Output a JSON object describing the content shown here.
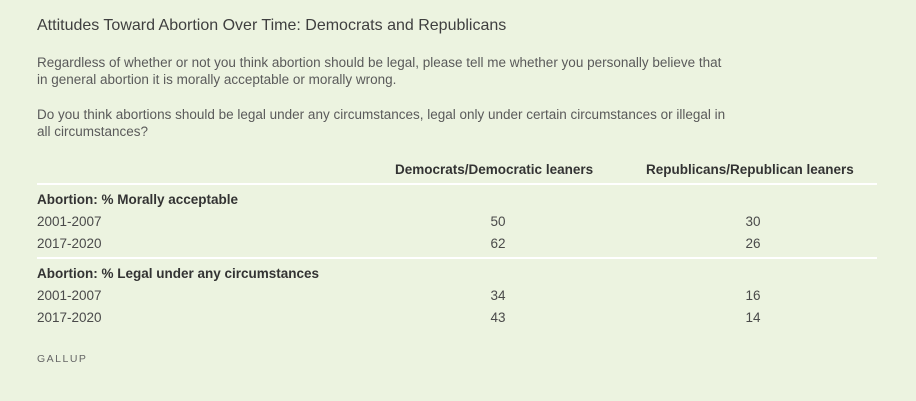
{
  "title": "Attitudes Toward Abortion Over Time: Democrats and Republicans",
  "questions": [
    "Regardless of whether or not you think abortion should be legal, please tell me whether you personally believe that in general abortion it is morally acceptable or morally wrong.",
    "Do you think abortions should be legal under any circumstances, legal only under certain circumstances or illegal in all circumstances?"
  ],
  "source": "GALLUP",
  "chart_data": {
    "type": "table",
    "columns": [
      "Democrats/Democratic leaners",
      "Republicans/Republican leaners"
    ],
    "sections": [
      {
        "heading": "Abortion: % Morally acceptable",
        "rows": [
          {
            "label": "2001-2007",
            "values": [
              "50",
              "30"
            ]
          },
          {
            "label": "2017-2020",
            "values": [
              "62",
              "26"
            ]
          }
        ]
      },
      {
        "heading": "Abortion: % Legal under any circumstances",
        "rows": [
          {
            "label": "2001-2007",
            "values": [
              "34",
              "16"
            ]
          },
          {
            "label": "2017-2020",
            "values": [
              "43",
              "14"
            ]
          }
        ]
      }
    ]
  }
}
